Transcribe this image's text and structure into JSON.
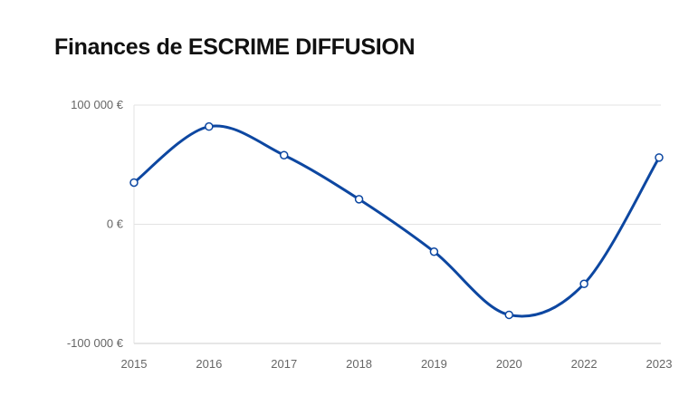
{
  "page": {
    "title": "Finances de ESCRIME DIFFUSION"
  },
  "colors": {
    "line": "#0d47a1",
    "grid": "#e3e3e3",
    "axis": "#cccccc",
    "point_fill": "#ffffff",
    "tick_text": "#666666"
  },
  "chart_data": {
    "type": "line",
    "title": "Finances de ESCRIME DIFFUSION",
    "xlabel": "",
    "ylabel": "",
    "categories": [
      "2015",
      "2016",
      "2017",
      "2018",
      "2019",
      "2020",
      "2022",
      "2023"
    ],
    "series": [
      {
        "values": [
          35000,
          82000,
          58000,
          21000,
          -23000,
          -76000,
          -50000,
          56000
        ]
      }
    ],
    "ylim": [
      -100000,
      100000
    ],
    "y_ticks": [
      {
        "value": 100000,
        "label": "100 000 €"
      },
      {
        "value": 0,
        "label": "0 €"
      },
      {
        "value": -100000,
        "label": "-100 000 €"
      }
    ],
    "grid": true,
    "legend": "none",
    "smooth": true
  }
}
